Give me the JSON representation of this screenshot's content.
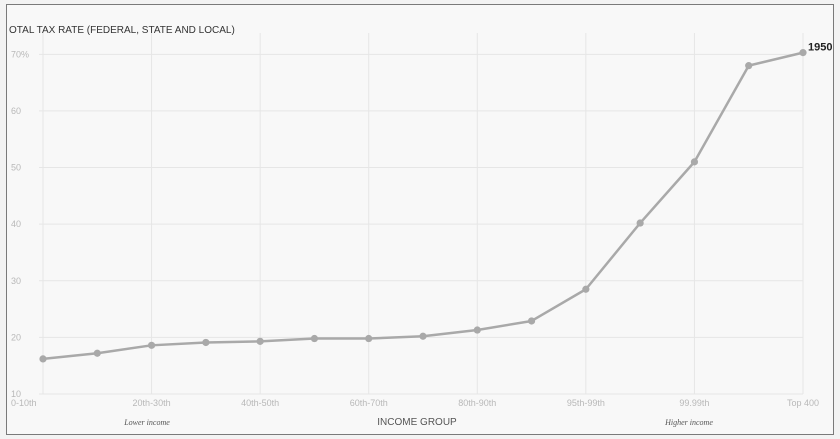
{
  "chart_data": {
    "type": "line",
    "title": "OTAL TAX RATE (FEDERAL, STATE AND LOCAL)",
    "xlabel": "INCOME GROUP",
    "x_tick_labels": [
      "0-10th",
      "20th-30th",
      "40th-50th",
      "60th-70th",
      "80th-90th",
      "95th-99th",
      "99.99th",
      "Top 400"
    ],
    "y_tick_labels": [
      "10",
      "20",
      "30",
      "40",
      "50",
      "60",
      "70%"
    ],
    "y_ticks": [
      10,
      20,
      30,
      40,
      50,
      60,
      70
    ],
    "ylim": [
      10,
      72
    ],
    "region_labels": [
      "Lower income",
      "Higher income"
    ],
    "grid": true,
    "series": [
      {
        "name": "1950",
        "values": [
          16.2,
          17.2,
          18.6,
          19.1,
          19.3,
          19.8,
          19.8,
          20.2,
          21.3,
          22.9,
          28.5,
          40.2,
          51.0,
          68.0,
          70.3
        ]
      }
    ]
  }
}
